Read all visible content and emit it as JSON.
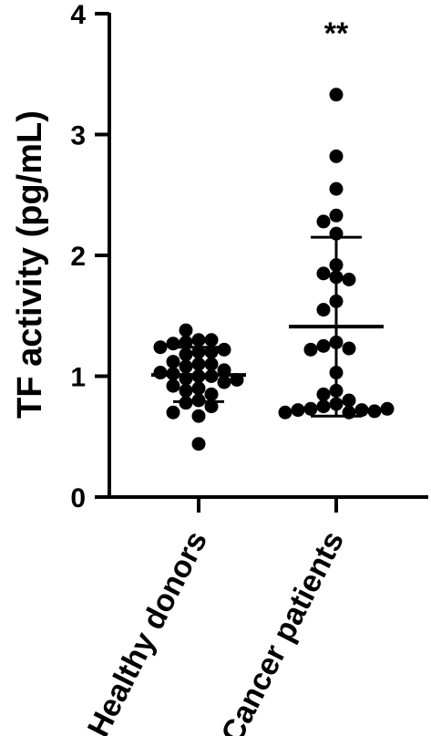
{
  "chart_data": {
    "type": "scatter",
    "ylabel": "TF activity (pg/mL)",
    "ylim": [
      0,
      4
    ],
    "yticks": [
      0,
      1,
      2,
      3,
      4
    ],
    "categories": [
      "Healthy donors",
      "Cancer patients"
    ],
    "annotations": [
      {
        "category": "Cancer patients",
        "text": "**"
      }
    ],
    "series": [
      {
        "category": "Healthy donors",
        "mean": 1.01,
        "sd_low": 0.79,
        "sd_high": 1.24,
        "values": [
          1.3,
          1.28,
          1.3,
          1.27,
          1.38,
          1.2,
          1.22,
          1.24,
          1.2,
          1.18,
          1.1,
          1.12,
          1.1,
          1.08,
          1.05,
          1.03,
          1.0,
          1.02,
          1.0,
          0.98,
          0.97,
          0.95,
          0.92,
          0.9,
          0.88,
          0.85,
          0.8,
          0.78,
          0.75,
          0.67,
          0.7,
          0.44
        ]
      },
      {
        "category": "Cancer patients",
        "mean": 1.41,
        "sd_low": 0.67,
        "sd_high": 2.15,
        "values": [
          3.33,
          2.82,
          2.55,
          2.33,
          2.28,
          2.18,
          1.92,
          1.82,
          1.85,
          1.8,
          1.62,
          1.55,
          1.28,
          1.25,
          1.23,
          1.22,
          1.03,
          0.88,
          0.85,
          0.8,
          0.77,
          0.75,
          0.73,
          0.72,
          0.7,
          0.72,
          0.71,
          0.7,
          0.73
        ]
      }
    ]
  }
}
